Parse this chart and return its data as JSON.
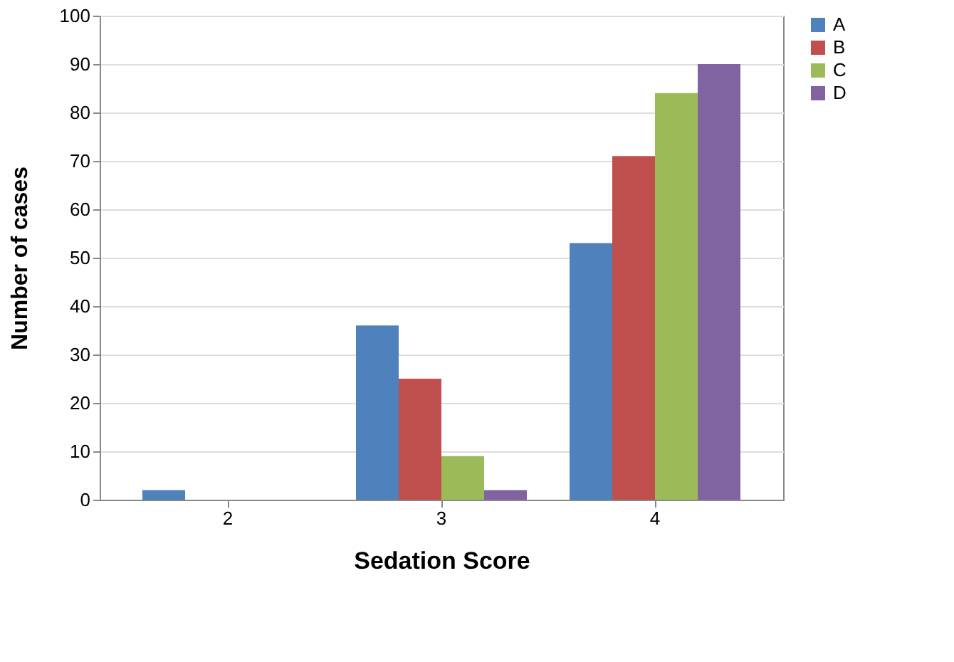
{
  "chart_data": {
    "type": "bar",
    "xlabel": "Sedation Score",
    "ylabel": "Number of cases",
    "categories": [
      "2",
      "3",
      "4"
    ],
    "series": [
      {
        "name": "A",
        "color": "#4f81bd",
        "values": [
          2,
          36,
          53
        ]
      },
      {
        "name": "B",
        "color": "#c0504d",
        "values": [
          0,
          25,
          71
        ]
      },
      {
        "name": "C",
        "color": "#9bbb59",
        "values": [
          0,
          9,
          84
        ]
      },
      {
        "name": "D",
        "color": "#8064a2",
        "values": [
          0,
          2,
          90
        ]
      }
    ],
    "ylim": [
      0,
      100
    ],
    "yticks": [
      0,
      10,
      20,
      30,
      40,
      50,
      60,
      70,
      80,
      90,
      100
    ],
    "grid": "y",
    "legend": "right"
  }
}
